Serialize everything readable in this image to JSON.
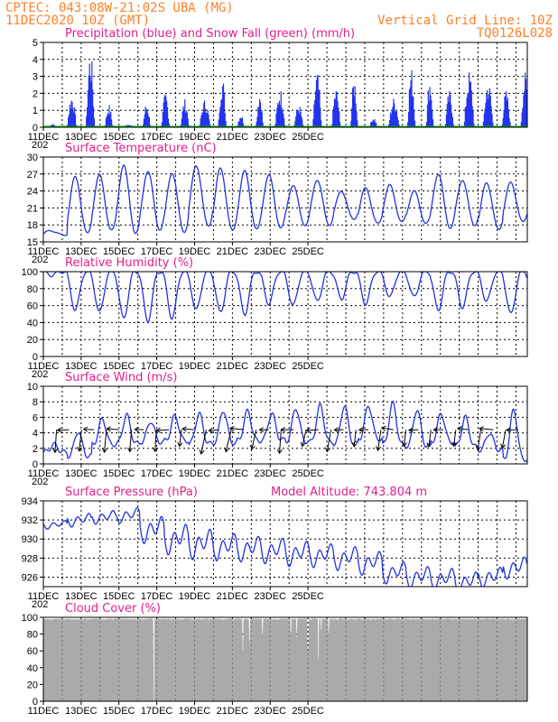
{
  "header": {
    "line1_left": "CPTEC:   043:08W-21:02S  UBA (MG)",
    "line2_left": "11DEC2020 10Z (GMT)",
    "line2_right": "Vertical Grid Line: 10Z",
    "line3_right": "TQ0126L028"
  },
  "colors": {
    "header": "#ff7f27",
    "title": "#e0208a",
    "line": "#2233dd",
    "precip": "#2233ee",
    "snow": "#00aa00",
    "cloud": "#aaaaaa",
    "wind_arrow": "#000000"
  },
  "chart_data": [
    {
      "type": "bar",
      "title": "Precipitation (blue) and Snow Fall (green) (mm/h)",
      "ylim": [
        0,
        5
      ],
      "yticks": [
        "0",
        "1",
        "2",
        "3",
        "4",
        "5"
      ],
      "grid": true,
      "xtick_labels": [
        "11DEC",
        "13DEC",
        "15DEC",
        "17DEC",
        "19DEC",
        "21DEC",
        "23DEC",
        "25DEC"
      ],
      "x_cut_label": "202",
      "daily_peak_mm": [
        0.2,
        1.9,
        4.4,
        1.3,
        0.2,
        1.4,
        2.0,
        1.6,
        1.6,
        3.0,
        0.8,
        2.1,
        2.2,
        1.3,
        3.2,
        2.3,
        2.9,
        0.6,
        1.7,
        3.4,
        2.9,
        2.1,
        3.2,
        2.7,
        2.1,
        3.1
      ],
      "snow_mm": 0
    },
    {
      "type": "line",
      "title": "Surface Temperature (nC)",
      "ylim": [
        15,
        30
      ],
      "yticks": [
        "15",
        "18",
        "21",
        "24",
        "27",
        "30"
      ],
      "grid": true,
      "xtick_labels": [
        "11DEC",
        "13DEC",
        "15DEC",
        "17DEC",
        "19DEC",
        "21DEC",
        "23DEC",
        "25DEC"
      ],
      "x_cut_label": "202",
      "daily_max": [
        17.0,
        26.5,
        26.8,
        28.5,
        27.5,
        27.2,
        28.5,
        28.0,
        27.5,
        26.8,
        25.0,
        26.0,
        24.0,
        24.5,
        25.0,
        24.0,
        27.0,
        26.0,
        25.5,
        25.5
      ],
      "daily_min": [
        16.2,
        16.5,
        17.0,
        16.5,
        17.2,
        16.8,
        17.8,
        17.0,
        17.2,
        17.5,
        18.0,
        18.0,
        19.0,
        18.2,
        18.5,
        18.3,
        17.5,
        18.0,
        17.2,
        18.5
      ]
    },
    {
      "type": "line",
      "title": "Relative Humidity (%)",
      "ylim": [
        0,
        100
      ],
      "yticks": [
        "0",
        "20",
        "40",
        "60",
        "80",
        "100"
      ],
      "grid": true,
      "xtick_labels": [
        "11DEC",
        "13DEC",
        "15DEC",
        "17DEC",
        "19DEC",
        "21DEC",
        "23DEC",
        "25DEC"
      ],
      "x_cut_label": "202",
      "daily_min": [
        96,
        55,
        52,
        45,
        42,
        45,
        55,
        52,
        50,
        62,
        60,
        65,
        68,
        62,
        70,
        70,
        55,
        58,
        65,
        50
      ]
    },
    {
      "type": "line",
      "title": "Surface Wind (m/s)",
      "ylim": [
        0,
        10
      ],
      "yticks": [
        "0",
        "2",
        "4",
        "6",
        "8",
        "10"
      ],
      "grid": true,
      "xtick_labels": [
        "11DEC",
        "13DEC",
        "15DEC",
        "17DEC",
        "19DEC",
        "21DEC",
        "23DEC",
        "25DEC"
      ],
      "x_cut_label": "202",
      "daily_peak": [
        2.5,
        4.2,
        5.8,
        6.3,
        5.5,
        6.2,
        6.5,
        6.9,
        6.8,
        6.5,
        7.2,
        7.5,
        7.5,
        7.5,
        7.8,
        7.0,
        6.5,
        6.0,
        4.0,
        7.0
      ],
      "daily_low": [
        1.5,
        1.0,
        2.5,
        2.6,
        2.8,
        3.0,
        2.6,
        2.7,
        3.0,
        3.1,
        2.9,
        2.8,
        2.6,
        3.2,
        2.4,
        2.3,
        2.8,
        2.2,
        1.8,
        0.6
      ]
    },
    {
      "type": "line",
      "title": "Surface Pressure (hPa)",
      "annotation": "Model Altitude: 743.804 m",
      "ylim": [
        925,
        934
      ],
      "yticks": [
        "926",
        "928",
        "930",
        "932",
        "934"
      ],
      "grid": true,
      "xtick_labels": [
        "11DEC",
        "13DEC",
        "15DEC",
        "17DEC",
        "19DEC",
        "21DEC",
        "23DEC",
        "25DEC"
      ],
      "x_cut_label": "202",
      "daily_mean": [
        931.5,
        932.0,
        932.3,
        932.5,
        931.0,
        930.0,
        929.5,
        929.2,
        929.0,
        928.8,
        928.5,
        928.3,
        928.0,
        927.5,
        926.5,
        926.0,
        925.8,
        925.5,
        926.0,
        927.0
      ],
      "daily_amplitude": [
        0.5,
        0.8,
        0.8,
        0.9,
        1.6,
        1.8,
        1.8,
        1.6,
        1.5,
        1.5,
        1.5,
        1.4,
        1.4,
        1.4,
        1.3,
        1.3,
        1.3,
        1.2,
        1.2,
        1.3
      ]
    },
    {
      "type": "area",
      "title": "Cloud Cover (%)",
      "ylim": [
        0,
        100
      ],
      "yticks": [
        "0",
        "20",
        "40",
        "60",
        "80",
        "100"
      ],
      "grid": true,
      "xtick_labels": [
        "11DEC",
        "13DEC",
        "15DEC",
        "17DEC",
        "19DEC",
        "21DEC",
        "23DEC",
        "25DEC"
      ],
      "typical_cover": 98,
      "gaps": [
        {
          "x": 5.85,
          "value": 0
        },
        {
          "x": 10.55,
          "value": 60
        },
        {
          "x": 10.9,
          "value": 72
        },
        {
          "x": 11.6,
          "value": 80
        },
        {
          "x": 13.1,
          "value": 82
        },
        {
          "x": 13.4,
          "value": 76
        },
        {
          "x": 14.0,
          "value": 60
        },
        {
          "x": 14.55,
          "value": 50
        },
        {
          "x": 14.7,
          "value": 85
        },
        {
          "x": 15.1,
          "value": 80
        }
      ]
    }
  ]
}
